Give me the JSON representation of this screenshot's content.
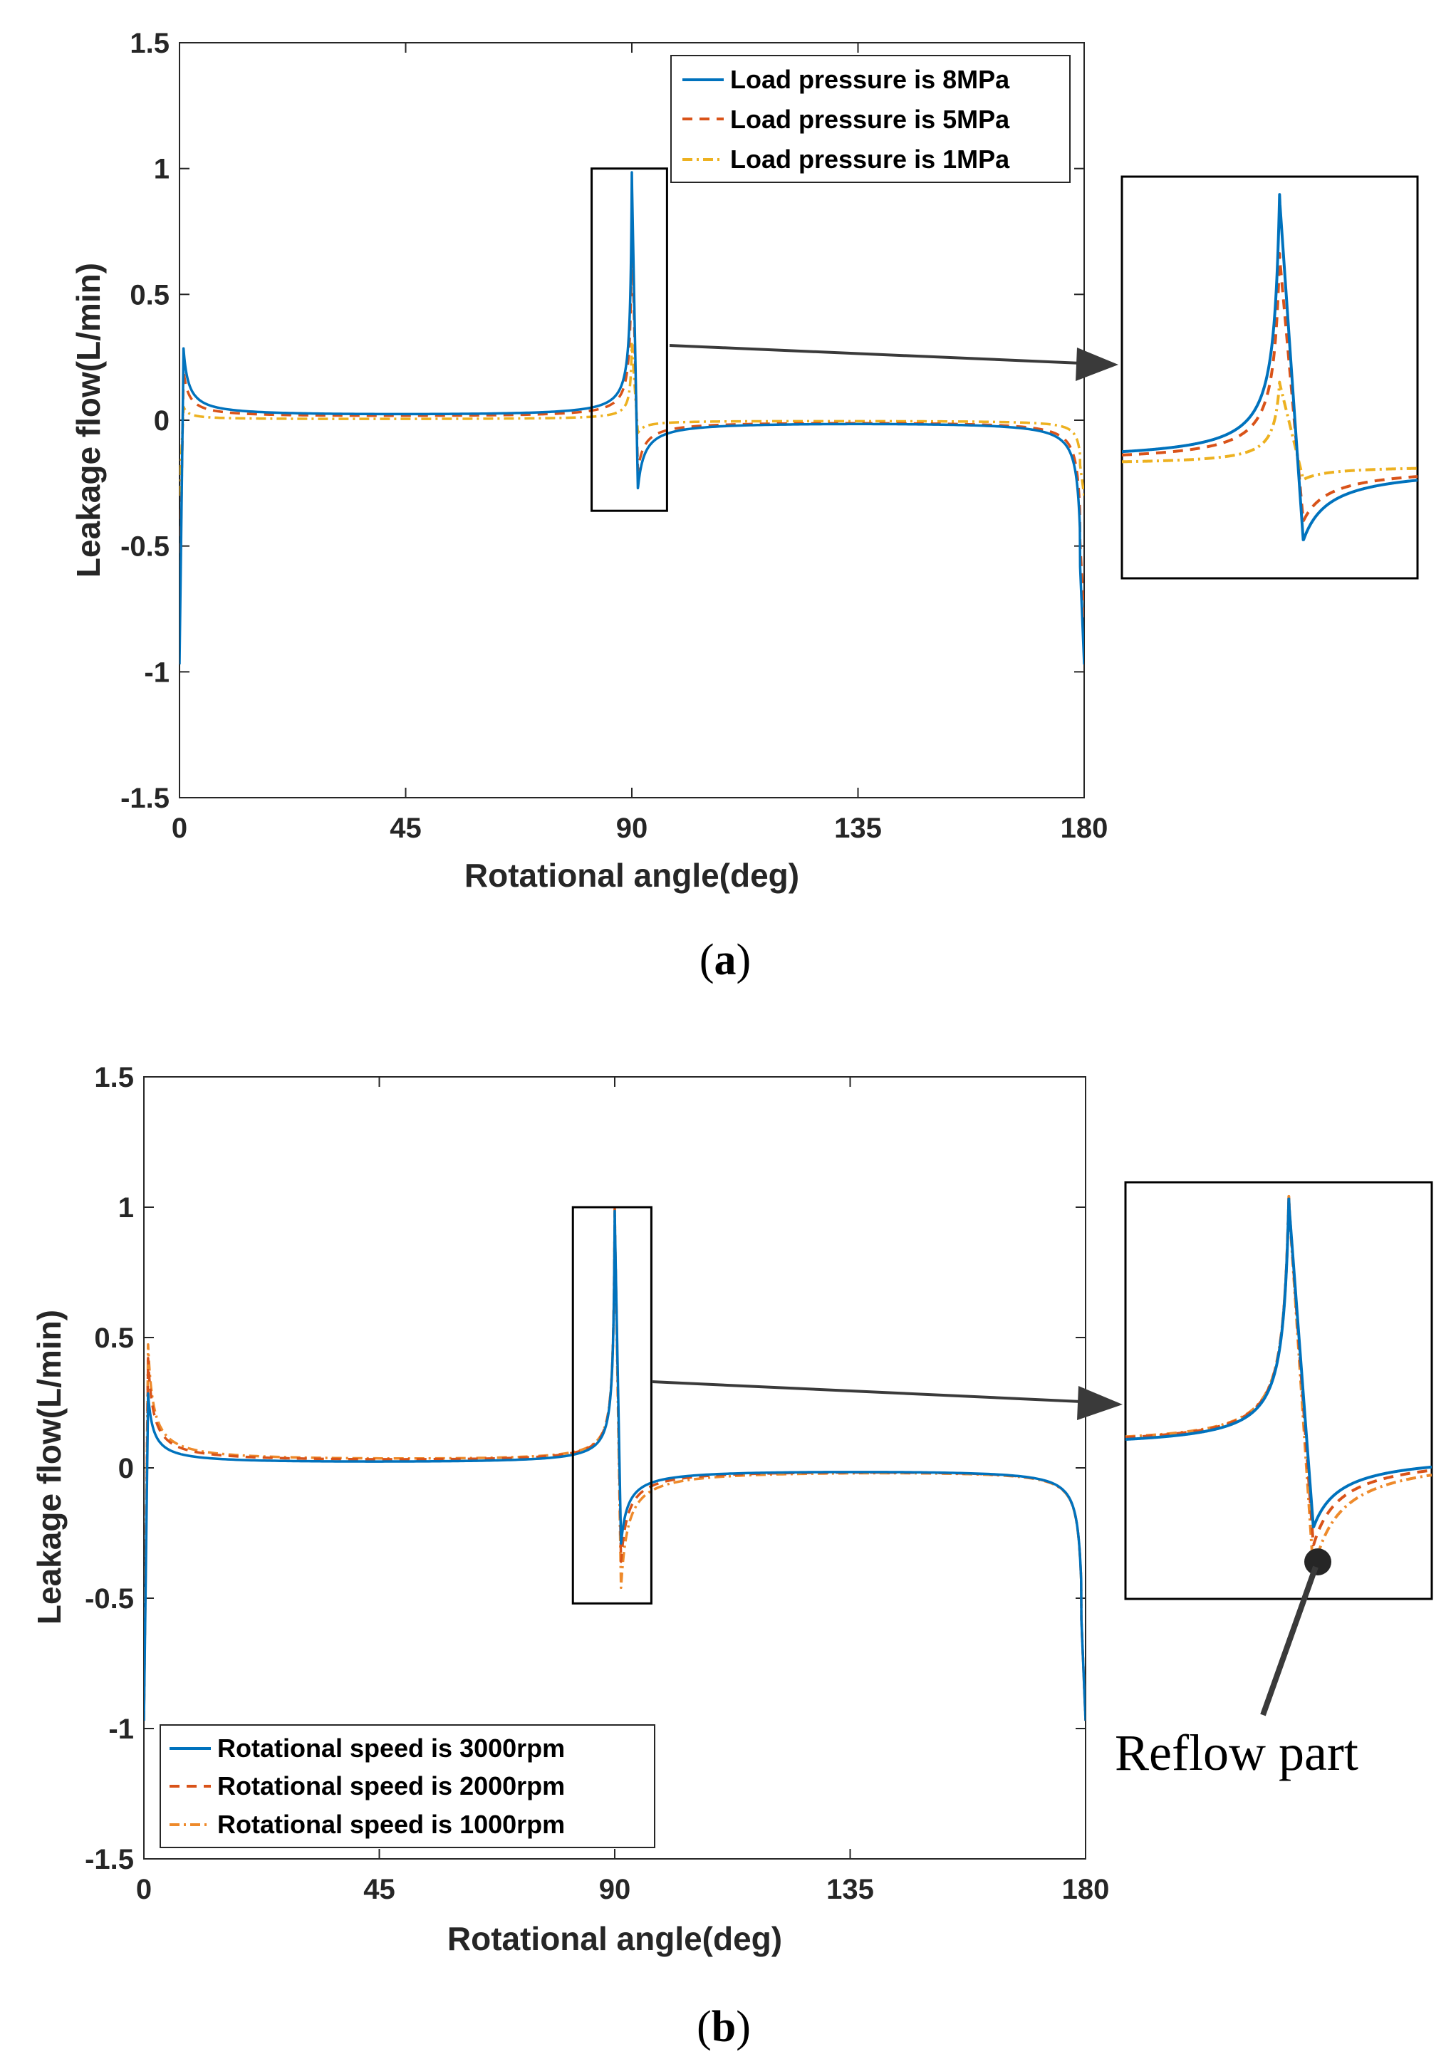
{
  "colors": {
    "series_a": [
      "#0072BD",
      "#D95319",
      "#EDB120"
    ],
    "series_b": [
      "#0072BD",
      "#D95319",
      "#EE8A2B"
    ],
    "axis": "#262626",
    "box": "#000000",
    "arrow": "#3a3a3a"
  },
  "chart_data": [
    {
      "type": "line",
      "panel_label": "(a)",
      "panel_letter": "a",
      "title": "",
      "xlabel": "Rotational angle(deg)",
      "ylabel": "Leakage flow(L/min)",
      "xlim": [
        0,
        180
      ],
      "ylim": [
        -1.5,
        1.5
      ],
      "xticks": [
        "0",
        "45",
        "90",
        "135",
        "180"
      ],
      "yticks": [
        "1.5",
        "1",
        "0.5",
        "0",
        "-0.5",
        "-1",
        "-1.5"
      ],
      "legend_position": "top-right",
      "zoom_region": {
        "x": [
          82,
          97
        ],
        "y": [
          -0.36,
          1.0
        ]
      },
      "series": [
        {
          "name": "Load pressure is 8MPa",
          "style": "solid",
          "peak_start": 0.27,
          "spike_peak": 0.97,
          "spike_min": -0.27,
          "end_value": -0.97
        },
        {
          "name": "Load pressure is 5MPa",
          "style": "dashed",
          "peak_start": 0.19,
          "spike_peak": 0.76,
          "spike_min": -0.2,
          "end_value": -0.8
        },
        {
          "name": "Load pressure is 1MPa",
          "style": "dashdot",
          "peak_start": 0.05,
          "spike_peak": 0.3,
          "spike_min": -0.05,
          "end_value": -0.3
        }
      ]
    },
    {
      "type": "line",
      "panel_label": "(b)",
      "panel_letter": "b",
      "title": "",
      "xlabel": "Rotational angle(deg)",
      "ylabel": "Leakage flow(L/min)",
      "xlim": [
        0,
        180
      ],
      "ylim": [
        -1.5,
        1.5
      ],
      "xticks": [
        "0",
        "45",
        "90",
        "135",
        "180"
      ],
      "yticks": [
        "1.5",
        "1",
        "0.5",
        "0",
        "-0.5",
        "-1",
        "-1.5"
      ],
      "legend_position": "bottom-left",
      "zoom_region": {
        "x": [
          82,
          97
        ],
        "y": [
          -0.52,
          1.0
        ]
      },
      "annotation": "Reflow part",
      "series": [
        {
          "name": "Rotational speed is 3000rpm",
          "style": "solid",
          "peak_start": 0.27,
          "spike_peak": 0.97,
          "spike_min": -0.29,
          "end_value": -0.97
        },
        {
          "name": "Rotational speed is 2000rpm",
          "style": "dashed",
          "peak_start": 0.4,
          "spike_peak": 0.97,
          "spike_min": -0.36,
          "end_value": -0.97
        },
        {
          "name": "Rotational speed is 1000rpm",
          "style": "dashdot",
          "peak_start": 0.45,
          "spike_peak": 0.97,
          "spike_min": -0.46,
          "end_value": -0.97
        }
      ]
    }
  ]
}
